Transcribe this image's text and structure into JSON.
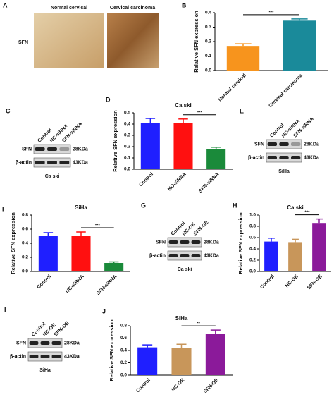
{
  "images": {
    "panel": "A",
    "columns": [
      "Normal cervical",
      "Cervical carcinoma"
    ],
    "row": "SFN"
  },
  "chart_data": [
    {
      "type": "bar",
      "panel": "B",
      "ylabel": "Relative SFN expression",
      "categories": [
        "Normal cervical",
        "Cervical carcinoma"
      ],
      "values": [
        0.17,
        0.345
      ],
      "errors": [
        0.015,
        0.012
      ],
      "colors": [
        "#f7941d",
        "#1a8a9a"
      ],
      "ylim": [
        0,
        0.4
      ],
      "yticks": [
        {
          "value": 0,
          "label": "0.0"
        },
        0.1,
        0.2,
        0.3,
        0.4
      ],
      "significance": "***"
    },
    {
      "type": "bar",
      "panel": "D",
      "title": "Ca ski",
      "ylabel": "Relative SFN expression",
      "categories": [
        "Control",
        "NC-siRNA",
        "SFN-siRNA"
      ],
      "values": [
        0.41,
        0.41,
        0.175
      ],
      "errors": [
        0.04,
        0.035,
        0.02
      ],
      "colors": [
        "#1f1fff",
        "#ff1010",
        "#1a8a3a"
      ],
      "ylim": [
        0,
        0.5
      ],
      "yticks": [
        {
          "value": 0,
          "label": "0.0"
        },
        0.1,
        0.2,
        0.3,
        0.4,
        0.5
      ],
      "significance": "***"
    },
    {
      "type": "bar",
      "panel": "F",
      "title": "SiHa",
      "ylabel": "Relative SFN expression",
      "categories": [
        "Control",
        "NC-siRNA",
        "SFN-siRNA"
      ],
      "values": [
        0.5,
        0.5,
        0.12
      ],
      "errors": [
        0.05,
        0.06,
        0.015
      ],
      "colors": [
        "#1f1fff",
        "#ff1010",
        "#1a8a3a"
      ],
      "ylim": [
        0,
        0.8
      ],
      "yticks": [
        {
          "value": 0,
          "label": "0.0"
        },
        0.2,
        0.4,
        0.6,
        0.8
      ],
      "significance": "***"
    },
    {
      "type": "bar",
      "panel": "H",
      "title": "Ca ski",
      "ylabel": "Relative SFN expression",
      "categories": [
        "Control",
        "NC-OE",
        "SFN-OE"
      ],
      "values": [
        0.53,
        0.52,
        0.86
      ],
      "errors": [
        0.06,
        0.05,
        0.07
      ],
      "colors": [
        "#1f1fff",
        "#c8965a",
        "#8b1a9a"
      ],
      "ylim": [
        0,
        1.0
      ],
      "yticks": [
        {
          "value": 0,
          "label": "0.0"
        },
        0.2,
        0.4,
        0.6,
        0.8,
        {
          "value": 1.0,
          "label": "1.0"
        }
      ],
      "significance": "***"
    },
    {
      "type": "bar",
      "panel": "J",
      "title": "SiHa",
      "ylabel": "Relative SFN expression",
      "categories": [
        "Control",
        "NC-OE",
        "SFN-OE"
      ],
      "values": [
        0.45,
        0.44,
        0.67
      ],
      "errors": [
        0.04,
        0.06,
        0.06
      ],
      "colors": [
        "#1f1fff",
        "#c8965a",
        "#8b1a9a"
      ],
      "ylim": [
        0,
        0.8
      ],
      "yticks": [
        {
          "value": 0,
          "label": "0.0"
        },
        0.2,
        0.4,
        0.6,
        0.8
      ],
      "significance": "**"
    }
  ],
  "blots": [
    {
      "panel": "C",
      "lanes": [
        "Control",
        "NC-siRNA",
        "SFN-siRNA"
      ],
      "rows": [
        "SFN",
        "β-actin"
      ],
      "sizes": [
        "28KDa",
        "43KDa"
      ],
      "cell_line": "Ca ski"
    },
    {
      "panel": "E",
      "lanes": [
        "Control",
        "NC-siRNA",
        "SFN-siRNA"
      ],
      "rows": [
        "SFN",
        "β-actin"
      ],
      "sizes": [
        "28KDa",
        "43KDa"
      ],
      "cell_line": "SiHa"
    },
    {
      "panel": "G",
      "lanes": [
        "Control",
        "NC-OE",
        "SFN-OE"
      ],
      "rows": [
        "SFN",
        "β-actin"
      ],
      "sizes": [
        "28KDa",
        "43KDa"
      ],
      "cell_line": "Ca ski"
    },
    {
      "panel": "I",
      "lanes": [
        "Control",
        "NC-OE",
        "SFN-OE"
      ],
      "rows": [
        "SFN",
        "β-actin"
      ],
      "sizes": [
        "28KDa",
        "43KDa"
      ],
      "cell_line": "SiHa"
    }
  ]
}
